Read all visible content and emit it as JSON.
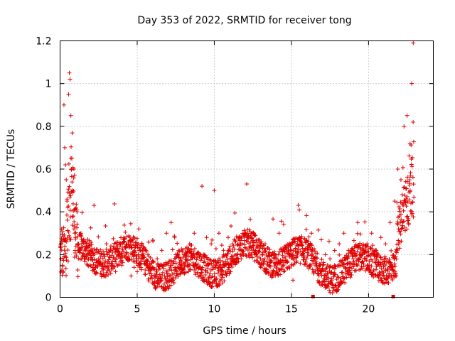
{
  "chart_data": {
    "type": "scatter",
    "title": "Day 353 of 2022, SRMTID for receiver tong",
    "xlabel": "GPS time / hours",
    "ylabel": "SRMTID / TECUs",
    "xlim": [
      0,
      24.2
    ],
    "ylim": [
      0,
      1.2
    ],
    "x_ticks": [
      0,
      5,
      10,
      15,
      20
    ],
    "x_tick_labels": [
      "0",
      "5",
      "10",
      "15",
      "20"
    ],
    "y_ticks": [
      0,
      0.2,
      0.4,
      0.6,
      0.8,
      1.0,
      1.2
    ],
    "y_tick_labels": [
      "0",
      "0.2",
      "0.4",
      "0.6",
      "0.8",
      "1",
      "1.2"
    ],
    "grid": true,
    "marker": "plus",
    "color": "#e00000",
    "data_gaps_hours": [
      16.4,
      21.6
    ],
    "series": [
      {
        "name": "SRMTID",
        "description": "dense scatter of ~2000 points; values mostly 0.05-0.35 TECU with spikes near 0.5-1.05 at 0.3-1.2 h and 0.5-1.19 at 21.8-23.0 h",
        "x": [
          0.05,
          0.1,
          0.15,
          0.2,
          0.25,
          0.3,
          0.35,
          0.4,
          0.45,
          0.5,
          0.55,
          0.6,
          0.65,
          0.7,
          0.75,
          0.8,
          0.85,
          0.9,
          0.95,
          1.0,
          1.1,
          1.2,
          1.3,
          1.4,
          1.6,
          1.8,
          2.0,
          2.2,
          2.5,
          2.8,
          3.0,
          3.3,
          3.6,
          4.0,
          4.3,
          4.6,
          4.8,
          5.0,
          5.3,
          5.6,
          6.0,
          6.3,
          6.6,
          6.9,
          7.2,
          7.5,
          7.8,
          8.1,
          8.4,
          8.7,
          9.0,
          9.2,
          9.5,
          9.8,
          10.0,
          10.3,
          10.6,
          10.9,
          11.2,
          11.5,
          11.8,
          12.1,
          12.4,
          12.7,
          13.0,
          13.3,
          13.6,
          13.9,
          14.2,
          14.5,
          14.8,
          15.1,
          15.4,
          15.7,
          16.0,
          16.3,
          16.6,
          16.9,
          17.2,
          17.5,
          17.8,
          18.1,
          18.4,
          18.7,
          19.0,
          19.3,
          19.6,
          19.9,
          20.2,
          20.5,
          20.8,
          21.1,
          21.4,
          21.7,
          21.9,
          22.1,
          22.3,
          22.5,
          22.7,
          22.8,
          22.9
        ],
        "y": [
          0.18,
          0.32,
          0.15,
          0.12,
          0.9,
          0.7,
          0.62,
          0.55,
          0.45,
          0.42,
          0.95,
          1.05,
          1.02,
          0.85,
          0.6,
          0.5,
          0.38,
          0.32,
          0.3,
          0.28,
          0.4,
          0.25,
          0.22,
          0.18,
          0.2,
          0.15,
          0.22,
          0.43,
          0.18,
          0.2,
          0.25,
          0.22,
          0.12,
          0.15,
          0.18,
          0.1,
          0.14,
          0.12,
          0.2,
          0.16,
          0.14,
          0.18,
          0.22,
          0.3,
          0.35,
          0.2,
          0.18,
          0.15,
          0.25,
          0.3,
          0.2,
          0.52,
          0.28,
          0.25,
          0.5,
          0.3,
          0.22,
          0.28,
          0.25,
          0.2,
          0.22,
          0.53,
          0.3,
          0.2,
          0.18,
          0.25,
          0.15,
          0.2,
          0.3,
          0.12,
          0.22,
          0.08,
          0.25,
          0.2,
          0.18,
          0.3,
          0.15,
          0.12,
          0.2,
          0.18,
          0.15,
          0.25,
          0.3,
          0.22,
          0.18,
          0.35,
          0.2,
          0.25,
          0.3,
          0.22,
          0.28,
          0.25,
          0.35,
          0.45,
          0.6,
          0.55,
          0.8,
          0.85,
          0.5,
          1.0,
          1.19
        ]
      }
    ]
  }
}
